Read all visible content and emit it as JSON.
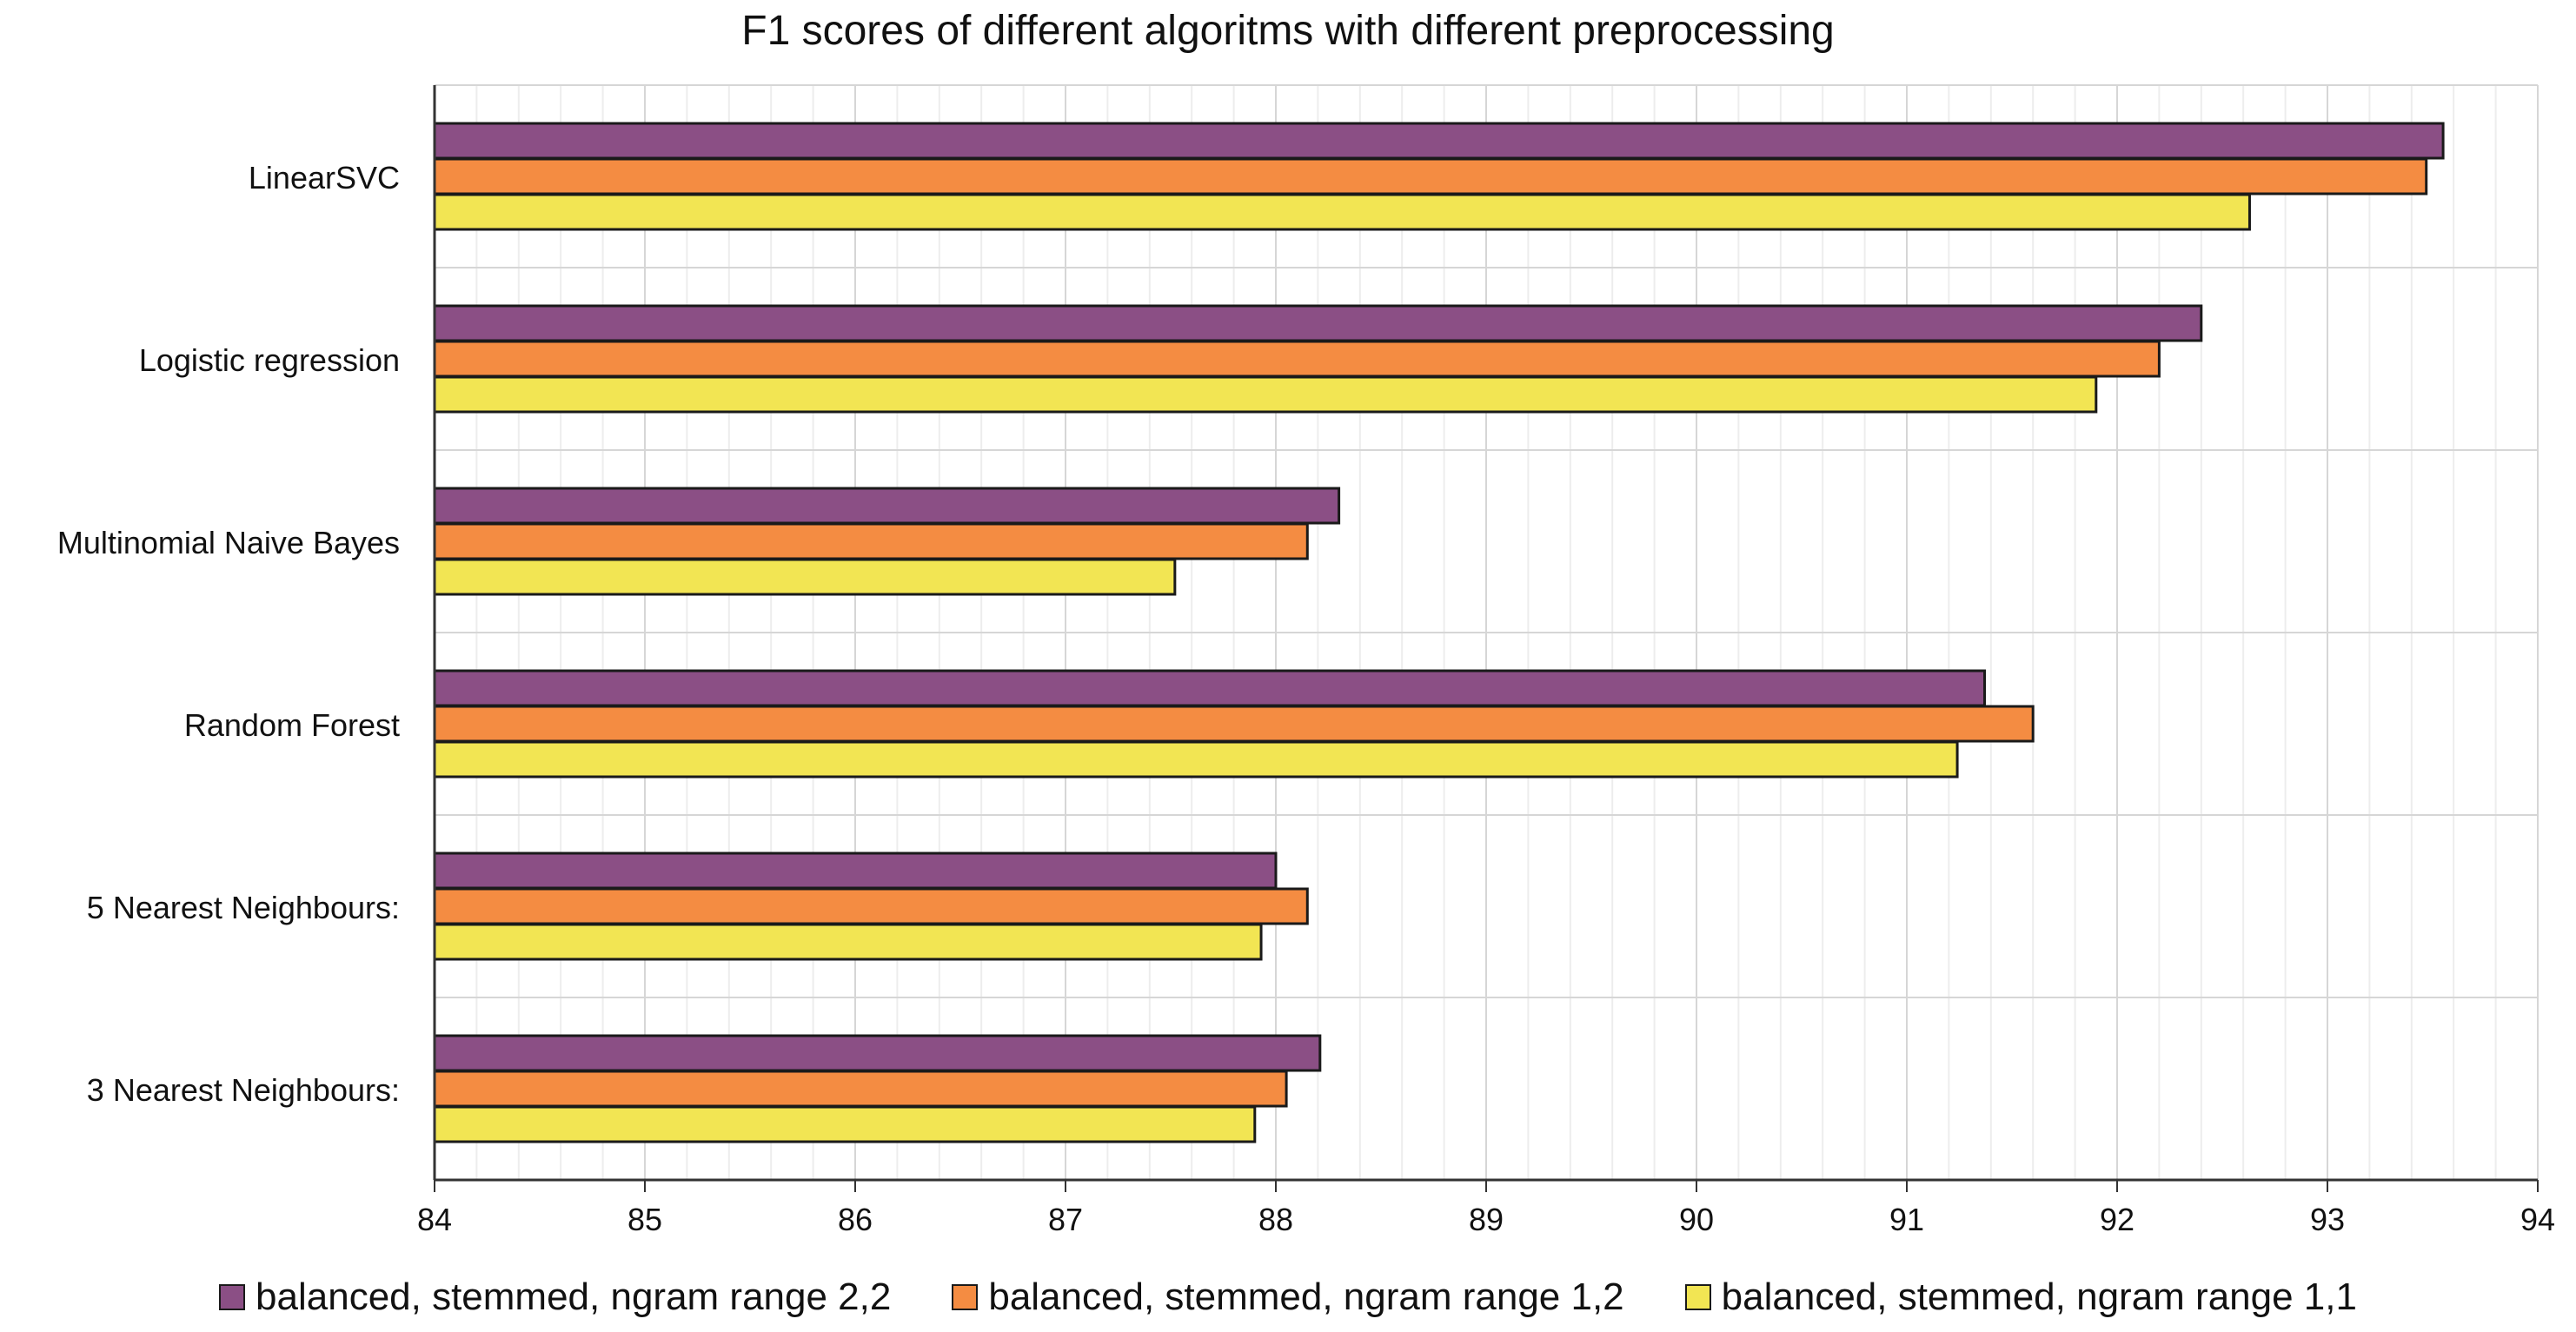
{
  "chart_data": {
    "type": "bar",
    "orientation": "horizontal",
    "title": "F1 scores of different algoritms with different preprocessing",
    "xlabel": "",
    "ylabel": "",
    "xlim": [
      84,
      94
    ],
    "x_ticks": [
      "84",
      "85",
      "86",
      "87",
      "88",
      "89",
      "90",
      "91",
      "92",
      "93",
      "94"
    ],
    "grid": true,
    "legend_position": "bottom",
    "categories": [
      "LinearSVC",
      "Logistic regression",
      "Multinomial Naive Bayes",
      "Random Forest",
      "5 Nearest Neighbours:",
      "3 Nearest Neighbours:"
    ],
    "series": [
      {
        "name": "balanced, stemmed, ngram range 2,2",
        "color": "#8b4f85",
        "values": [
          93.55,
          92.4,
          88.3,
          91.37,
          88.0,
          88.21
        ]
      },
      {
        "name": "balanced, stemmed, ngram range 1,2",
        "color": "#f48c42",
        "values": [
          93.47,
          92.2,
          88.15,
          91.6,
          88.15,
          88.05
        ]
      },
      {
        "name": "balanced, stemmed, ngram range 1,1",
        "color": "#f2e553",
        "values": [
          92.63,
          91.9,
          87.52,
          91.24,
          87.93,
          87.9
        ]
      }
    ]
  }
}
